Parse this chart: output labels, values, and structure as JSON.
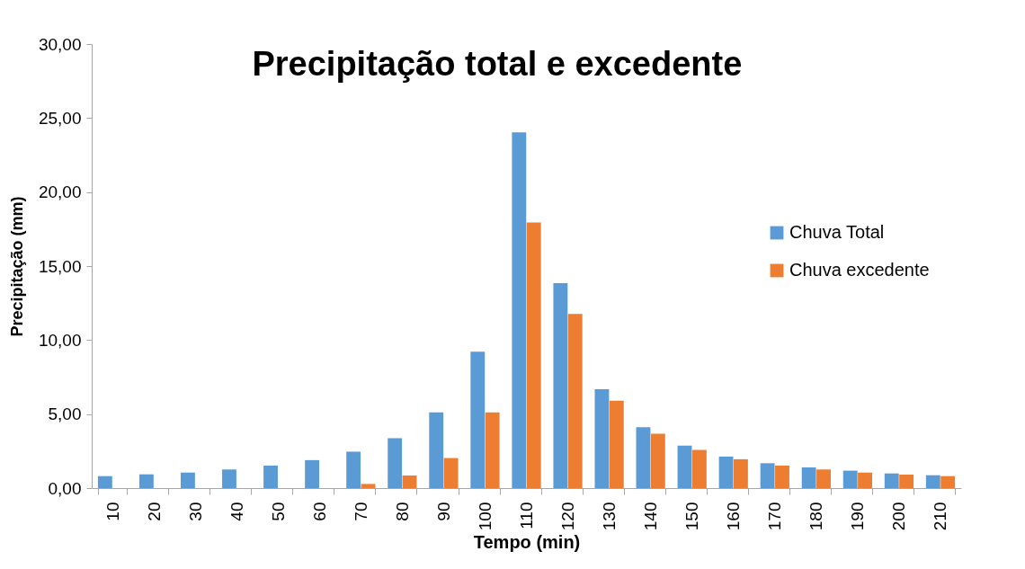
{
  "chart_data": {
    "type": "bar",
    "title": "Precipitação total e excedente",
    "xlabel": "Tempo (min)",
    "ylabel": "Precipitação (mm)",
    "categories": [
      "10",
      "20",
      "30",
      "40",
      "50",
      "60",
      "70",
      "80",
      "90",
      "100",
      "110",
      "120",
      "130",
      "140",
      "150",
      "160",
      "170",
      "180",
      "190",
      "200",
      "210"
    ],
    "series": [
      {
        "name": "Chuva Total",
        "color": "#5b9bd5",
        "values": [
          0.81,
          0.93,
          1.05,
          1.26,
          1.52,
          1.89,
          2.46,
          3.37,
          5.12,
          9.22,
          24.04,
          13.84,
          6.68,
          4.12,
          2.87,
          2.13,
          1.68,
          1.4,
          1.18,
          0.99,
          0.87
        ]
      },
      {
        "name": "Chuva excedente",
        "color": "#ed7d31",
        "values": [
          0,
          0,
          0,
          0,
          0,
          0,
          0.28,
          0.85,
          2.03,
          5.12,
          17.94,
          11.77,
          5.91,
          3.68,
          2.58,
          1.95,
          1.52,
          1.26,
          1.05,
          0.91,
          0.81
        ]
      }
    ],
    "ylim": [
      0,
      30
    ],
    "yticks": [
      {
        "value": 0,
        "label": "0,00"
      },
      {
        "value": 5,
        "label": "5,00"
      },
      {
        "value": 10,
        "label": "10,00"
      },
      {
        "value": 15,
        "label": "15,00"
      },
      {
        "value": 20,
        "label": "20,00"
      },
      {
        "value": 25,
        "label": "25,00"
      },
      {
        "value": 30,
        "label": "30,00"
      }
    ],
    "grid": false,
    "legend": "right"
  }
}
